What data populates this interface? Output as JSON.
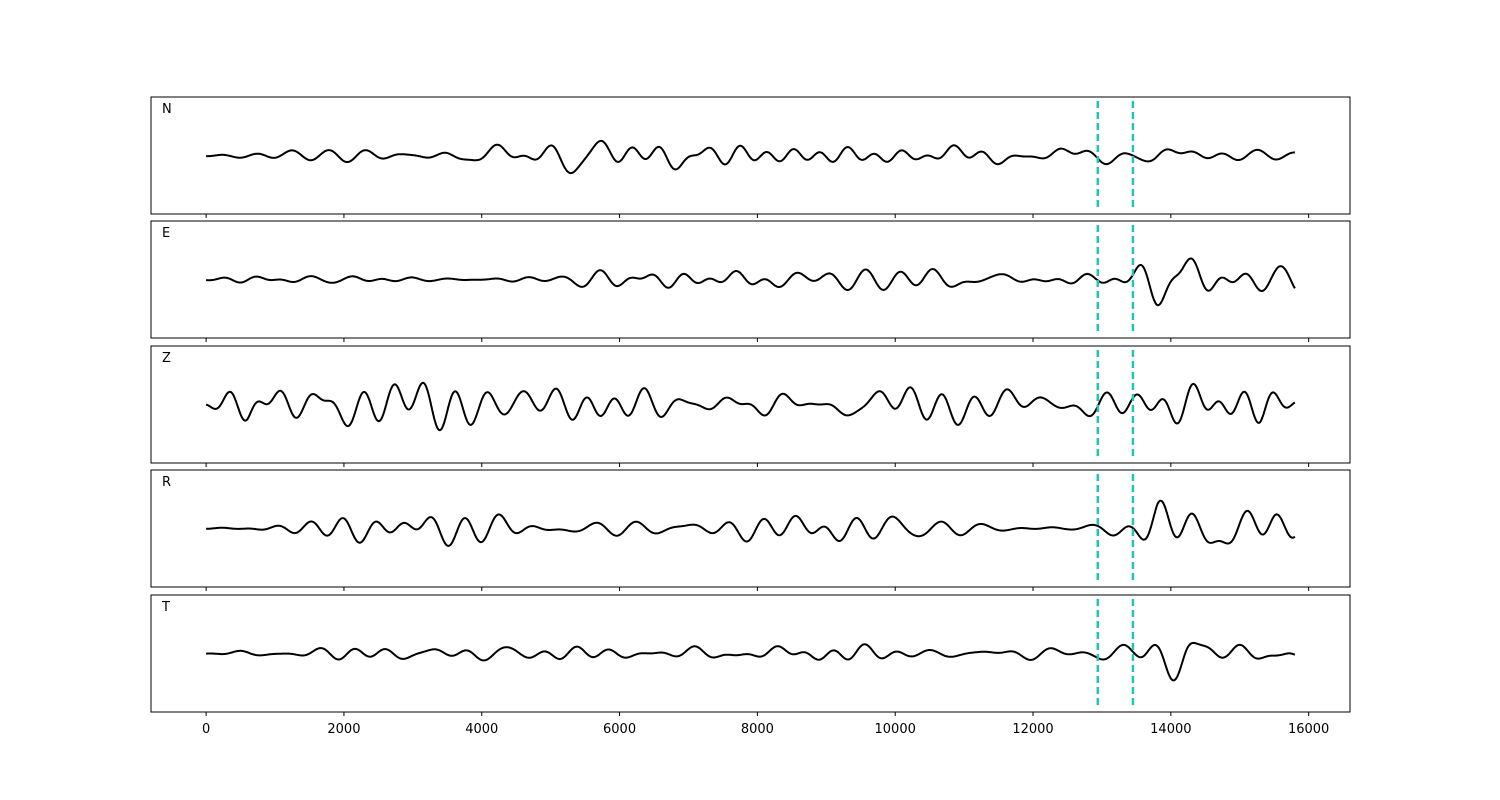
{
  "chart_data": {
    "type": "line",
    "title": "",
    "xlabel": "",
    "ylabel": "",
    "xlim": [
      -800,
      16600
    ],
    "xticks": [
      0,
      2000,
      4000,
      6000,
      8000,
      10000,
      12000,
      14000,
      16000
    ],
    "xtick_labels": [
      "0",
      "2000",
      "4000",
      "6000",
      "8000",
      "10000",
      "12000",
      "14000",
      "16000"
    ],
    "x_range": [
      0,
      15800
    ],
    "grid": false,
    "line_color": "#000000",
    "marker_color": "#1ec6b4",
    "markers": [
      12940,
      13450
    ],
    "panels": [
      {
        "name": "N",
        "envelope": [
          [
            0,
            0.02
          ],
          [
            2000,
            0.3
          ],
          [
            6000,
            0.35
          ],
          [
            10000,
            0.3
          ],
          [
            12900,
            0.25
          ],
          [
            13450,
            0.45
          ],
          [
            13800,
            0.9
          ],
          [
            14200,
            0.85
          ],
          [
            15500,
            0.7
          ],
          [
            15800,
            0.55
          ]
        ]
      },
      {
        "name": "E",
        "envelope": [
          [
            0,
            0.02
          ],
          [
            2000,
            0.18
          ],
          [
            6000,
            0.25
          ],
          [
            10000,
            0.25
          ],
          [
            12900,
            0.2
          ],
          [
            13450,
            0.4
          ],
          [
            13800,
            0.75
          ],
          [
            14200,
            1.0
          ],
          [
            15500,
            0.55
          ],
          [
            15800,
            0.55
          ]
        ]
      },
      {
        "name": "Z",
        "envelope": [
          [
            0,
            0.05
          ],
          [
            600,
            0.9
          ],
          [
            1300,
            0.7
          ],
          [
            3000,
            0.45
          ],
          [
            5000,
            0.7
          ],
          [
            5600,
            0.85
          ],
          [
            7000,
            0.45
          ],
          [
            11500,
            0.55
          ],
          [
            13450,
            0.35
          ],
          [
            15300,
            0.7
          ],
          [
            15800,
            0.3
          ]
        ]
      },
      {
        "name": "R",
        "envelope": [
          [
            0,
            0.02
          ],
          [
            2000,
            0.3
          ],
          [
            6000,
            0.4
          ],
          [
            10000,
            0.3
          ],
          [
            12900,
            0.25
          ],
          [
            13450,
            0.4
          ],
          [
            13800,
            0.9
          ],
          [
            14200,
            0.85
          ],
          [
            15500,
            0.75
          ],
          [
            15800,
            0.55
          ]
        ]
      },
      {
        "name": "T",
        "envelope": [
          [
            0,
            0.02
          ],
          [
            2000,
            0.15
          ],
          [
            6000,
            0.2
          ],
          [
            10000,
            0.22
          ],
          [
            12900,
            0.15
          ],
          [
            13450,
            0.25
          ],
          [
            13800,
            0.5
          ],
          [
            14200,
            1.0
          ],
          [
            14800,
            0.45
          ],
          [
            15800,
            0.25
          ]
        ]
      }
    ]
  }
}
